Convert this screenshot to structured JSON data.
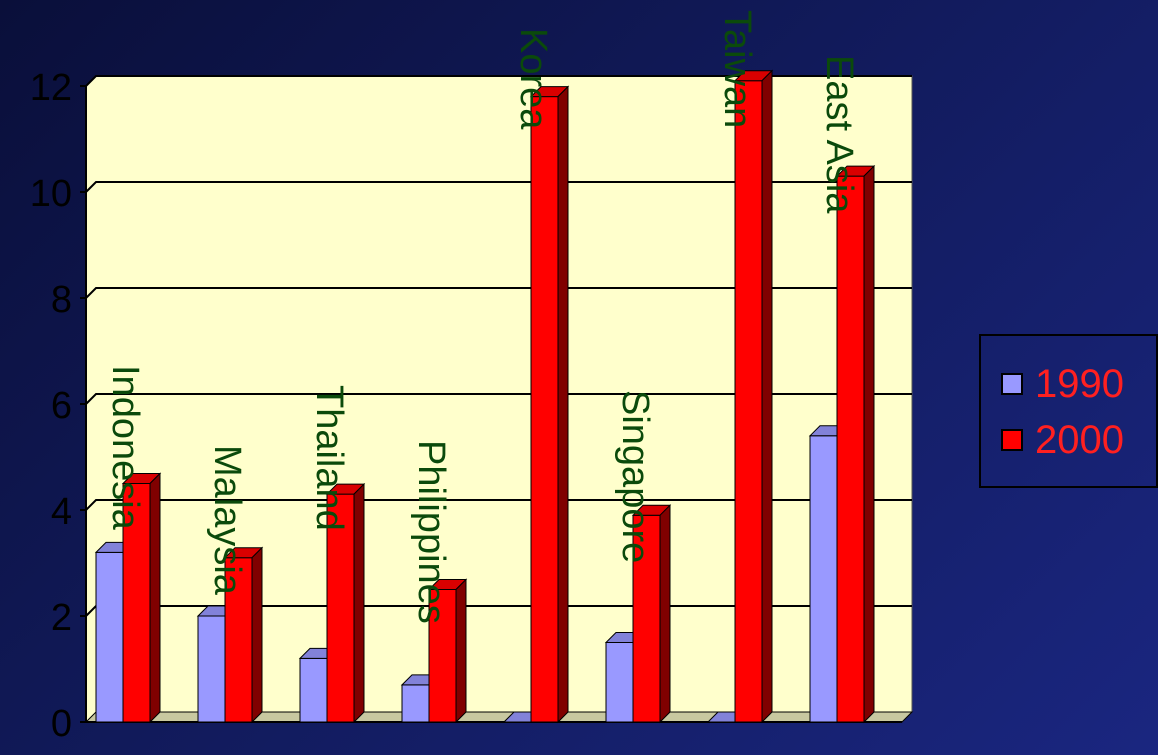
{
  "chart_data": {
    "type": "bar",
    "categories": [
      "Indonesia",
      "Malaysia",
      "Thailand",
      "Philippines",
      "Korea",
      "Singapore",
      "Taiwan",
      "East Asia"
    ],
    "series": [
      {
        "name": "1990",
        "values": [
          3.2,
          2.0,
          1.2,
          0.7,
          0.0,
          1.5,
          0.0,
          5.4
        ],
        "color": "#9999ff"
      },
      {
        "name": "2000",
        "values": [
          4.5,
          3.1,
          4.3,
          2.5,
          11.8,
          3.9,
          12.1,
          10.3
        ],
        "color": "#ff0000"
      }
    ],
    "yticks": [
      "0",
      "2",
      "4",
      "6",
      "8",
      "10",
      "12"
    ],
    "ylim": [
      0,
      12
    ],
    "grid": true,
    "legend": "right",
    "title": "",
    "xlabel": "",
    "ylabel": ""
  },
  "colors": {
    "plot_background": "#ffffcc",
    "category_label": "#0b4a0b",
    "tick_label": "#000000",
    "legend_text": "#ff2020"
  }
}
